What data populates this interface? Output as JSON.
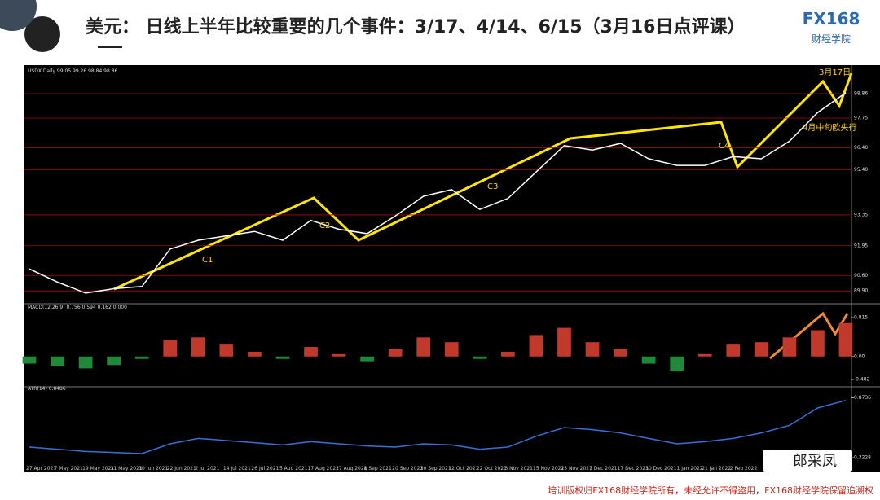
{
  "slide": {
    "title": "美元： 日线上半年比较重要的几个事件：3/17、4/14、6/15（3月16日点评课）",
    "logo": "FX168",
    "logo_sub": "财经学院",
    "footer": "培训版权归FX168财经学院所有，未经允许不得盗用，FX168财经学院保留追溯权",
    "watermark": "郎采凤"
  },
  "chart_data": [
    {
      "type": "line",
      "title": "USDX,Daily 99.05 99.26 98.84 98.86",
      "categories": [
        "27 Apr 2021",
        "7 May 2021",
        "19 May 2021",
        "31 May 2021",
        "10 Jun 2021",
        "22 Jun 2021",
        "2 Jul 2021",
        "14 Jul 2021",
        "26 Jul 2021",
        "5 Aug 2021",
        "17 Aug 2021",
        "27 Aug 2021",
        "8 Sep 2021",
        "20 Sep 2021",
        "30 Sep 2021",
        "12 Oct 2021",
        "22 Oct 2021",
        "3 Nov 2021",
        "15 Nov 2021",
        "25 Nov 2021",
        "7 Dec 2021",
        "17 Dec 2021",
        "30 Dec 2021",
        "11 Jan 2022",
        "21 Jan 2022",
        "2 Feb 2022",
        null,
        null,
        null,
        null
      ],
      "values": [
        90.9,
        90.3,
        89.8,
        90.0,
        90.1,
        91.8,
        92.2,
        92.4,
        92.6,
        92.2,
        93.1,
        92.7,
        92.5,
        93.3,
        94.2,
        94.5,
        93.6,
        94.1,
        95.3,
        96.5,
        96.3,
        96.6,
        95.9,
        95.6,
        95.6,
        96.0,
        95.9,
        96.7,
        98.0,
        98.9
      ],
      "color": "#ffffff",
      "ylim": [
        89.5,
        99.6
      ],
      "yticks": [
        {
          "value": 89.9,
          "label": "89.90"
        },
        {
          "value": 90.6,
          "label": "90.60"
        },
        {
          "value": 91.95,
          "label": "91.95"
        },
        {
          "value": 93.35,
          "label": "93.35"
        },
        {
          "value": 95.4,
          "label": "95.40"
        },
        {
          "value": 96.4,
          "label": "96.40"
        },
        {
          "value": 97.75,
          "label": "97.75"
        },
        {
          "value": 98.86,
          "label": "98.86"
        }
      ],
      "grid": true,
      "annotations": [
        "C1",
        "C2",
        "C3",
        "C4",
        "3月17日",
        "4月中旬欧央行"
      ]
    },
    {
      "type": "bar",
      "title": "MACD(12,26,9) 0.756 0.594 0.162 0.000",
      "values": [
        -0.15,
        -0.2,
        -0.25,
        -0.18,
        -0.05,
        0.35,
        0.4,
        0.25,
        0.1,
        -0.05,
        0.2,
        0.05,
        -0.1,
        0.15,
        0.4,
        0.3,
        -0.05,
        0.1,
        0.45,
        0.6,
        0.3,
        0.15,
        -0.15,
        -0.3,
        0.05,
        0.25,
        0.3,
        0.4,
        0.55,
        0.7
      ],
      "color": "#c0392b",
      "ylim": [
        -0.55,
        0.9
      ],
      "yticks": [
        0.815,
        {
          "value": 0,
          "label": "0.00"
        },
        -0.482
      ]
    },
    {
      "type": "line",
      "title": "ATR(14) 0.8486",
      "values": [
        0.42,
        0.4,
        0.38,
        0.37,
        0.36,
        0.45,
        0.5,
        0.48,
        0.46,
        0.44,
        0.47,
        0.45,
        0.43,
        0.42,
        0.45,
        0.44,
        0.4,
        0.42,
        0.52,
        0.6,
        0.58,
        0.55,
        0.5,
        0.45,
        0.47,
        0.5,
        0.55,
        0.62,
        0.78,
        0.85
      ],
      "color": "#3b6fd6",
      "ylim": [
        0.3,
        0.9
      ],
      "yticks": [
        0.8736,
        0.3228
      ]
    }
  ]
}
